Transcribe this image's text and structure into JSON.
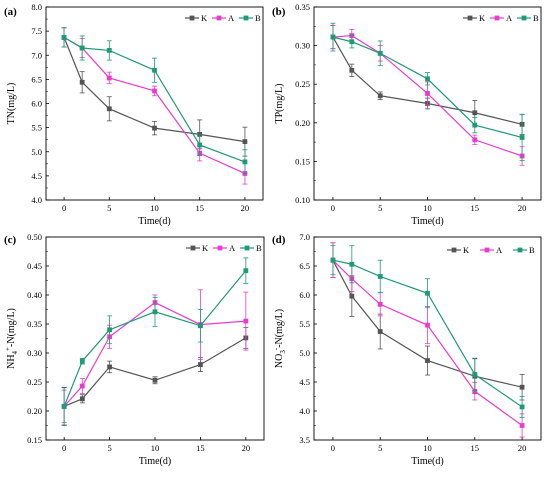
{
  "colors": {
    "K": "#555555",
    "A": "#e83ccf",
    "B": "#1f9a77"
  },
  "chart_data": [
    {
      "type": "line",
      "panel": "(a)",
      "xlabel": "Time(d)",
      "ylabel": "TN(mg/L)",
      "x": [
        0,
        2,
        5,
        10,
        15,
        20
      ],
      "xticks": [
        "0",
        "5",
        "10",
        "15",
        "20"
      ],
      "xlim": [
        -2,
        22
      ],
      "ylim": [
        4.0,
        8.0
      ],
      "yticks": [
        "4.0",
        "4.5",
        "5.0",
        "5.5",
        "6.0",
        "6.5",
        "7.0",
        "7.5",
        "8.0"
      ],
      "legend": "top-right",
      "grid": false,
      "series": [
        {
          "name": "K",
          "values": [
            7.37,
            6.44,
            5.89,
            5.49,
            5.36,
            5.21
          ],
          "errors": [
            0.2,
            0.22,
            0.25,
            0.14,
            0.3,
            0.3
          ]
        },
        {
          "name": "A",
          "values": [
            7.37,
            7.15,
            6.53,
            6.26,
            4.97,
            4.55
          ],
          "errors": [
            0.2,
            0.2,
            0.12,
            0.1,
            0.16,
            0.22
          ]
        },
        {
          "name": "B",
          "values": [
            7.37,
            7.15,
            7.1,
            6.69,
            5.14,
            4.79
          ],
          "errors": [
            0.2,
            0.25,
            0.2,
            0.25,
            0.22,
            0.25
          ]
        }
      ]
    },
    {
      "type": "line",
      "panel": "(b)",
      "xlabel": "Time(d)",
      "ylabel": "TP(mg/L)",
      "x": [
        0,
        2,
        5,
        10,
        15,
        20
      ],
      "xticks": [
        "0",
        "5",
        "10",
        "15",
        "20"
      ],
      "xlim": [
        -2,
        22
      ],
      "ylim": [
        0.1,
        0.35
      ],
      "yticks": [
        "0.10",
        "0.15",
        "0.20",
        "0.25",
        "0.30",
        "0.35"
      ],
      "legend": "top-right",
      "grid": false,
      "series": [
        {
          "name": "K",
          "values": [
            0.311,
            0.268,
            0.235,
            0.225,
            0.213,
            0.198
          ],
          "errors": [
            0.015,
            0.008,
            0.005,
            0.007,
            0.016,
            0.013
          ]
        },
        {
          "name": "A",
          "values": [
            0.311,
            0.313,
            0.29,
            0.238,
            0.178,
            0.157
          ],
          "errors": [
            0.015,
            0.008,
            0.01,
            0.015,
            0.006,
            0.012
          ]
        },
        {
          "name": "B",
          "values": [
            0.311,
            0.305,
            0.29,
            0.257,
            0.197,
            0.181
          ],
          "errors": [
            0.018,
            0.008,
            0.016,
            0.008,
            0.01,
            0.03
          ]
        }
      ]
    },
    {
      "type": "line",
      "panel": "(c)",
      "xlabel": "Time(d)",
      "ylabel": "NH4+-N(mg/L)",
      "ylabel_main": "NH",
      "ylabel_sub": "4",
      "ylabel_sup": "+",
      "ylabel_tail": "-N(mg/L)",
      "x": [
        0,
        2,
        5,
        10,
        15,
        20
      ],
      "xticks": [
        "0",
        "5",
        "10",
        "15",
        "20"
      ],
      "xlim": [
        -2,
        22
      ],
      "ylim": [
        0.15,
        0.5
      ],
      "yticks": [
        "0.15",
        "0.20",
        "0.25",
        "0.30",
        "0.35",
        "0.40",
        "0.45",
        "0.50"
      ],
      "legend": "top-right",
      "grid": false,
      "series": [
        {
          "name": "K",
          "values": [
            0.208,
            0.221,
            0.276,
            0.253,
            0.28,
            0.326
          ],
          "errors": [
            0.033,
            0.007,
            0.01,
            0.006,
            0.012,
            0.018
          ]
        },
        {
          "name": "A",
          "values": [
            0.208,
            0.243,
            0.328,
            0.387,
            0.349,
            0.355
          ],
          "errors": [
            0.028,
            0.013,
            0.02,
            0.013,
            0.06,
            0.05
          ]
        },
        {
          "name": "B",
          "values": [
            0.208,
            0.286,
            0.34,
            0.371,
            0.347,
            0.442
          ],
          "errors": [
            0.032,
            0.005,
            0.024,
            0.025,
            0.028,
            0.022
          ]
        }
      ]
    },
    {
      "type": "line",
      "panel": "(d)",
      "xlabel": "Time(d)",
      "ylabel": "NO3--N(mg/L)",
      "ylabel_main": "NO",
      "ylabel_sub": "3",
      "ylabel_sup": "-",
      "ylabel_tail": "-N(mg/L)",
      "x": [
        0,
        2,
        5,
        10,
        15,
        20
      ],
      "xticks": [
        "0",
        "5",
        "10",
        "15",
        "20"
      ],
      "xlim": [
        -2,
        22
      ],
      "ylim": [
        3.5,
        7.0
      ],
      "yticks": [
        "3.5",
        "4.0",
        "4.5",
        "5.0",
        "5.5",
        "6.0",
        "6.5",
        "7.0"
      ],
      "legend": "top-right",
      "grid": false,
      "series": [
        {
          "name": "K",
          "values": [
            6.6,
            5.98,
            5.37,
            4.87,
            4.6,
            4.41
          ],
          "errors": [
            0.3,
            0.35,
            0.3,
            0.25,
            0.3,
            0.22
          ]
        },
        {
          "name": "A",
          "values": [
            6.6,
            6.28,
            5.84,
            5.48,
            4.34,
            3.75
          ],
          "errors": [
            0.3,
            0.22,
            0.2,
            0.32,
            0.15,
            0.2
          ]
        },
        {
          "name": "B",
          "values": [
            6.6,
            6.53,
            6.32,
            6.03,
            4.63,
            4.07
          ],
          "errors": [
            0.25,
            0.32,
            0.28,
            0.25,
            0.28,
            0.18
          ]
        }
      ]
    }
  ]
}
